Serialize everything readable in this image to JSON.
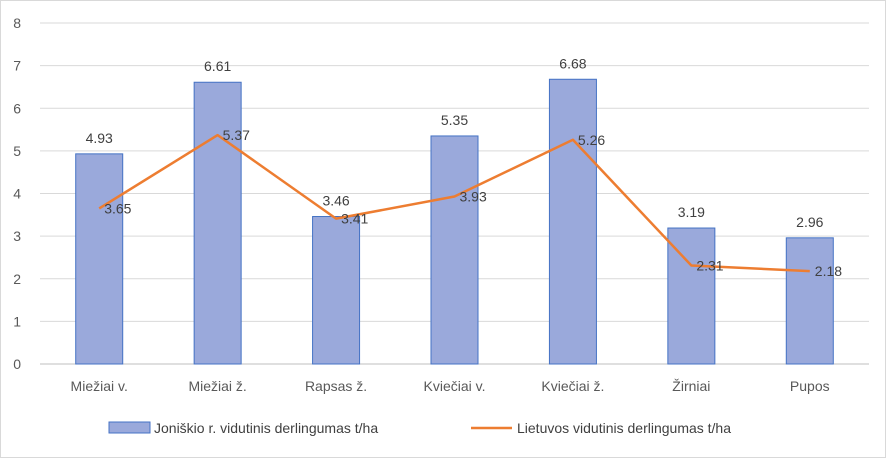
{
  "chart_data": {
    "type": "bar",
    "categories": [
      "Miežiai v.",
      "Miežiai ž.",
      "Rapsas ž.",
      "Kviečiai v.",
      "Kviečiai ž.",
      "Žirniai",
      "Pupos"
    ],
    "series": [
      {
        "name": "Joniškio r. vidutinis derlingumas t/ha",
        "type": "bar",
        "values": [
          4.93,
          6.61,
          3.46,
          5.35,
          6.68,
          3.19,
          2.96
        ],
        "labels": [
          "4.93",
          "6.61",
          "3.46",
          "5.35",
          "6.68",
          "3.19",
          "2.96"
        ],
        "color": "#9aa9db",
        "border": "#4472c4"
      },
      {
        "name": "Lietuvos vidutinis derlingumas t/ha",
        "type": "line",
        "values": [
          3.65,
          5.37,
          3.41,
          3.93,
          5.26,
          2.31,
          2.18
        ],
        "labels": [
          "3.65",
          "5.37",
          "3.41",
          "3.93",
          "5.26",
          "2.31",
          "2.18"
        ],
        "color": "#ed7d31"
      }
    ],
    "ylim": [
      0,
      8
    ],
    "yticks": [
      "0",
      "1",
      "2",
      "3",
      "4",
      "5",
      "6",
      "7",
      "8"
    ],
    "grid": true,
    "legend": "bottom"
  }
}
